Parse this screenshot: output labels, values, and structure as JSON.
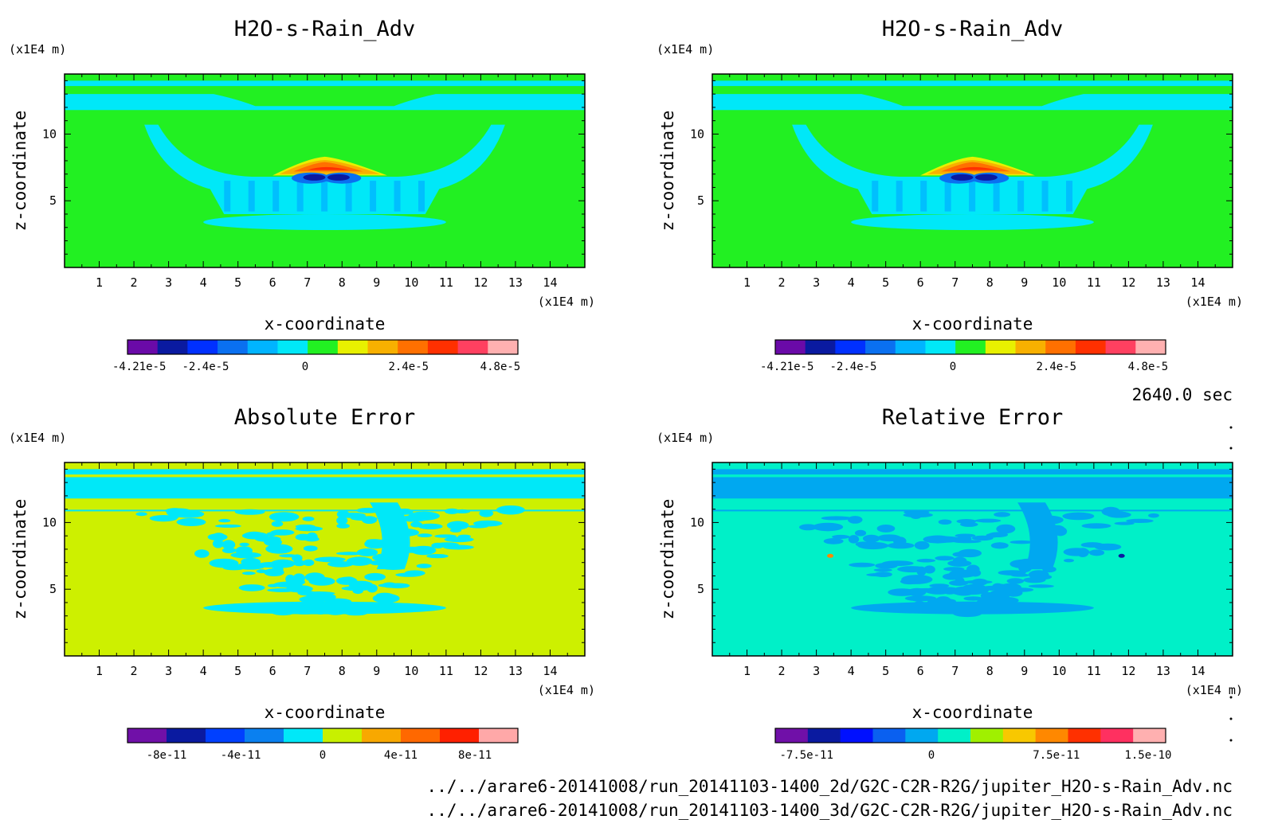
{
  "chart_data": [
    {
      "type": "heatmap",
      "title": "H2O-s-Rain_Adv",
      "xlabel": "x-coordinate",
      "ylabel": "z-coordinate",
      "x_unit": "(x1E4 m)",
      "y_unit": "(x1E4 m)",
      "xlim": [
        0,
        15
      ],
      "ylim": [
        0,
        14.5
      ],
      "x_ticks": [
        "1",
        "2",
        "3",
        "4",
        "5",
        "6",
        "7",
        "8",
        "9",
        "10",
        "11",
        "12",
        "13",
        "14"
      ],
      "y_ticks": [
        "5",
        "10"
      ],
      "colorbar": {
        "labels": [
          "-4.21e-5",
          "-2.4e-5",
          "0",
          "2.4e-5",
          "4.8e-5"
        ],
        "colors": [
          "#6a0aa8",
          "#0a1aa0",
          "#0030ff",
          "#0a70f0",
          "#00b4ff",
          "#00e8f8",
          "#22f022",
          "#e8f000",
          "#f8b000",
          "#ff7000",
          "#ff3000",
          "#ff4060",
          "#ffb0b0"
        ]
      },
      "background": "#22f022",
      "feature": "advection"
    },
    {
      "type": "heatmap",
      "title": "H2O-s-Rain_Adv",
      "xlabel": "x-coordinate",
      "ylabel": "z-coordinate",
      "x_unit": "(x1E4 m)",
      "y_unit": "(x1E4 m)",
      "xlim": [
        0,
        15
      ],
      "ylim": [
        0,
        14.5
      ],
      "x_ticks": [
        "1",
        "2",
        "3",
        "4",
        "5",
        "6",
        "7",
        "8",
        "9",
        "10",
        "11",
        "12",
        "13",
        "14"
      ],
      "y_ticks": [
        "5",
        "10"
      ],
      "colorbar": {
        "labels": [
          "-4.21e-5",
          "-2.4e-5",
          "0",
          "2.4e-5",
          "4.8e-5"
        ],
        "colors": [
          "#6a0aa8",
          "#0a1aa0",
          "#0030ff",
          "#0a70f0",
          "#00b4ff",
          "#00e8f8",
          "#22f022",
          "#e8f000",
          "#f8b000",
          "#ff7000",
          "#ff3000",
          "#ff4060",
          "#ffb0b0"
        ]
      },
      "background": "#22f022",
      "feature": "advection"
    },
    {
      "type": "heatmap",
      "title": "Absolute Error",
      "xlabel": "x-coordinate",
      "ylabel": "z-coordinate",
      "x_unit": "(x1E4 m)",
      "y_unit": "(x1E4 m)",
      "xlim": [
        0,
        15
      ],
      "ylim": [
        0,
        14.5
      ],
      "x_ticks": [
        "1",
        "2",
        "3",
        "4",
        "5",
        "6",
        "7",
        "8",
        "9",
        "10",
        "11",
        "12",
        "13",
        "14"
      ],
      "y_ticks": [
        "5",
        "10"
      ],
      "colorbar": {
        "labels": [
          "-8e-11",
          "-4e-11",
          "0",
          "4e-11",
          "8e-11"
        ],
        "colors": [
          "#7010a8",
          "#0a1aa0",
          "#0040ff",
          "#0a80f0",
          "#00e8f8",
          "#c8f000",
          "#f8a800",
          "#ff6800",
          "#ff2000",
          "#ffa8a8"
        ]
      },
      "background": "#cdf000",
      "feature": "error-cyan"
    },
    {
      "type": "heatmap",
      "title": "Relative Error",
      "xlabel": "x-coordinate",
      "ylabel": "z-coordinate",
      "x_unit": "(x1E4 m)",
      "y_unit": "(x1E4 m)",
      "xlim": [
        0,
        15
      ],
      "ylim": [
        0,
        14.5
      ],
      "x_ticks": [
        "1",
        "2",
        "3",
        "4",
        "5",
        "6",
        "7",
        "8",
        "9",
        "10",
        "11",
        "12",
        "13",
        "14"
      ],
      "y_ticks": [
        "5",
        "10"
      ],
      "colorbar": {
        "labels": [
          "-7.5e-11",
          "0",
          "7.5e-11",
          "1.5e-10"
        ],
        "colors": [
          "#7010a8",
          "#0a1aa0",
          "#0010ff",
          "#0a60f0",
          "#00a8f0",
          "#00f0c8",
          "#a0f000",
          "#f8c800",
          "#ff8800",
          "#ff3000",
          "#ff3060",
          "#ffb0b0"
        ]
      },
      "background": "#00f0c8",
      "feature": "error-blue"
    }
  ],
  "time_label": "2640.0 sec",
  "file_paths": [
    "../../arare6-20141008/run_20141103-1400_2d/G2C-C2R-R2G/jupiter_H2O-s-Rain_Adv.nc",
    "../../arare6-20141008/run_20141103-1400_3d/G2C-C2R-R2G/jupiter_H2O-s-Rain_Adv.nc"
  ]
}
